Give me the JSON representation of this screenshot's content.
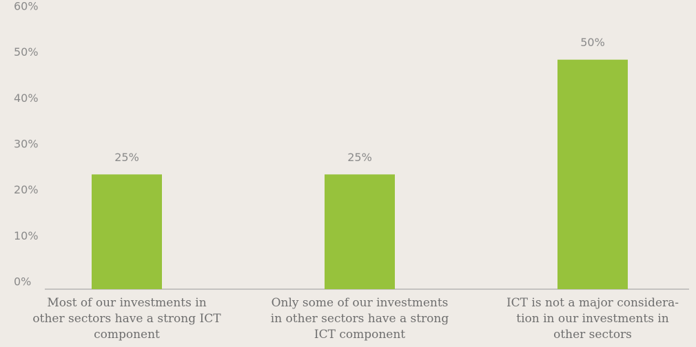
{
  "chart_data": {
    "type": "bar",
    "categories": [
      "Most of our investments in\nother sectors have a strong ICT\ncomponent",
      "Only some of our investments\nin other sectors have a strong\nICT component",
      "ICT is not a major considera-\ntion in our investments in\nother sectors"
    ],
    "values": [
      25,
      25,
      50
    ],
    "value_labels": [
      "25%",
      "25%",
      "50%"
    ],
    "color": "#97c23c",
    "ylim": [
      0,
      60
    ],
    "yticks": [
      {
        "value": 0,
        "label": "0%"
      },
      {
        "value": 10,
        "label": "10%"
      },
      {
        "value": 20,
        "label": "20%"
      },
      {
        "value": 30,
        "label": "30%"
      },
      {
        "value": 40,
        "label": "40%"
      },
      {
        "value": 50,
        "label": "50%"
      },
      {
        "value": 60,
        "label": "60%"
      }
    ],
    "grid": false
  }
}
